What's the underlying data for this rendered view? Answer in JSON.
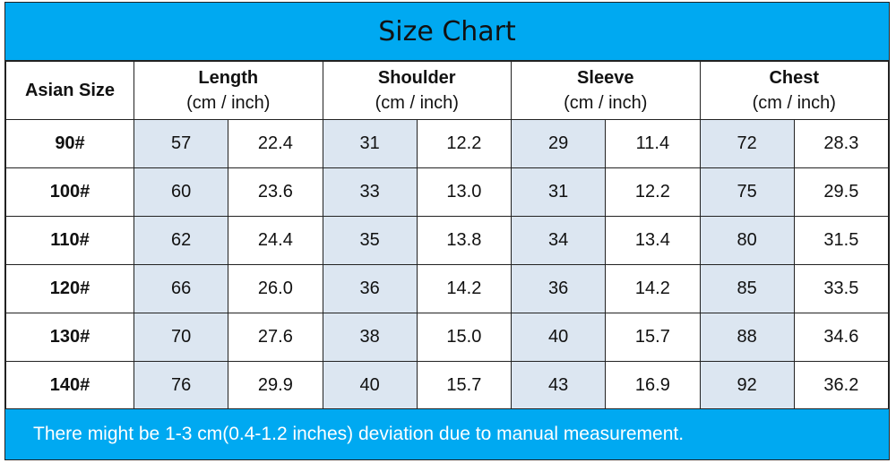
{
  "title": "Size Chart",
  "table": {
    "first_header": "Asian Size",
    "columns": [
      {
        "name": "Length",
        "unit": "(cm / inch)"
      },
      {
        "name": "Shoulder",
        "unit": "(cm / inch)"
      },
      {
        "name": "Sleeve",
        "unit": "(cm / inch)"
      },
      {
        "name": "Chest",
        "unit": "(cm / inch)"
      }
    ],
    "rows": [
      [
        "90#",
        "57",
        "22.4",
        "31",
        "12.2",
        "29",
        "11.4",
        "72",
        "28.3"
      ],
      [
        "100#",
        "60",
        "23.6",
        "33",
        "13.0",
        "31",
        "12.2",
        "75",
        "29.5"
      ],
      [
        "110#",
        "62",
        "24.4",
        "35",
        "13.8",
        "34",
        "13.4",
        "80",
        "31.5"
      ],
      [
        "120#",
        "66",
        "26.0",
        "36",
        "14.2",
        "36",
        "14.2",
        "85",
        "33.5"
      ],
      [
        "130#",
        "70",
        "27.6",
        "38",
        "15.0",
        "40",
        "15.7",
        "88",
        "34.6"
      ],
      [
        "140#",
        "76",
        "29.9",
        "40",
        "15.7",
        "43",
        "16.9",
        "92",
        "36.2"
      ]
    ]
  },
  "note": "There might be 1-3 cm(0.4-1.2 inches) deviation due to manual measurement."
}
